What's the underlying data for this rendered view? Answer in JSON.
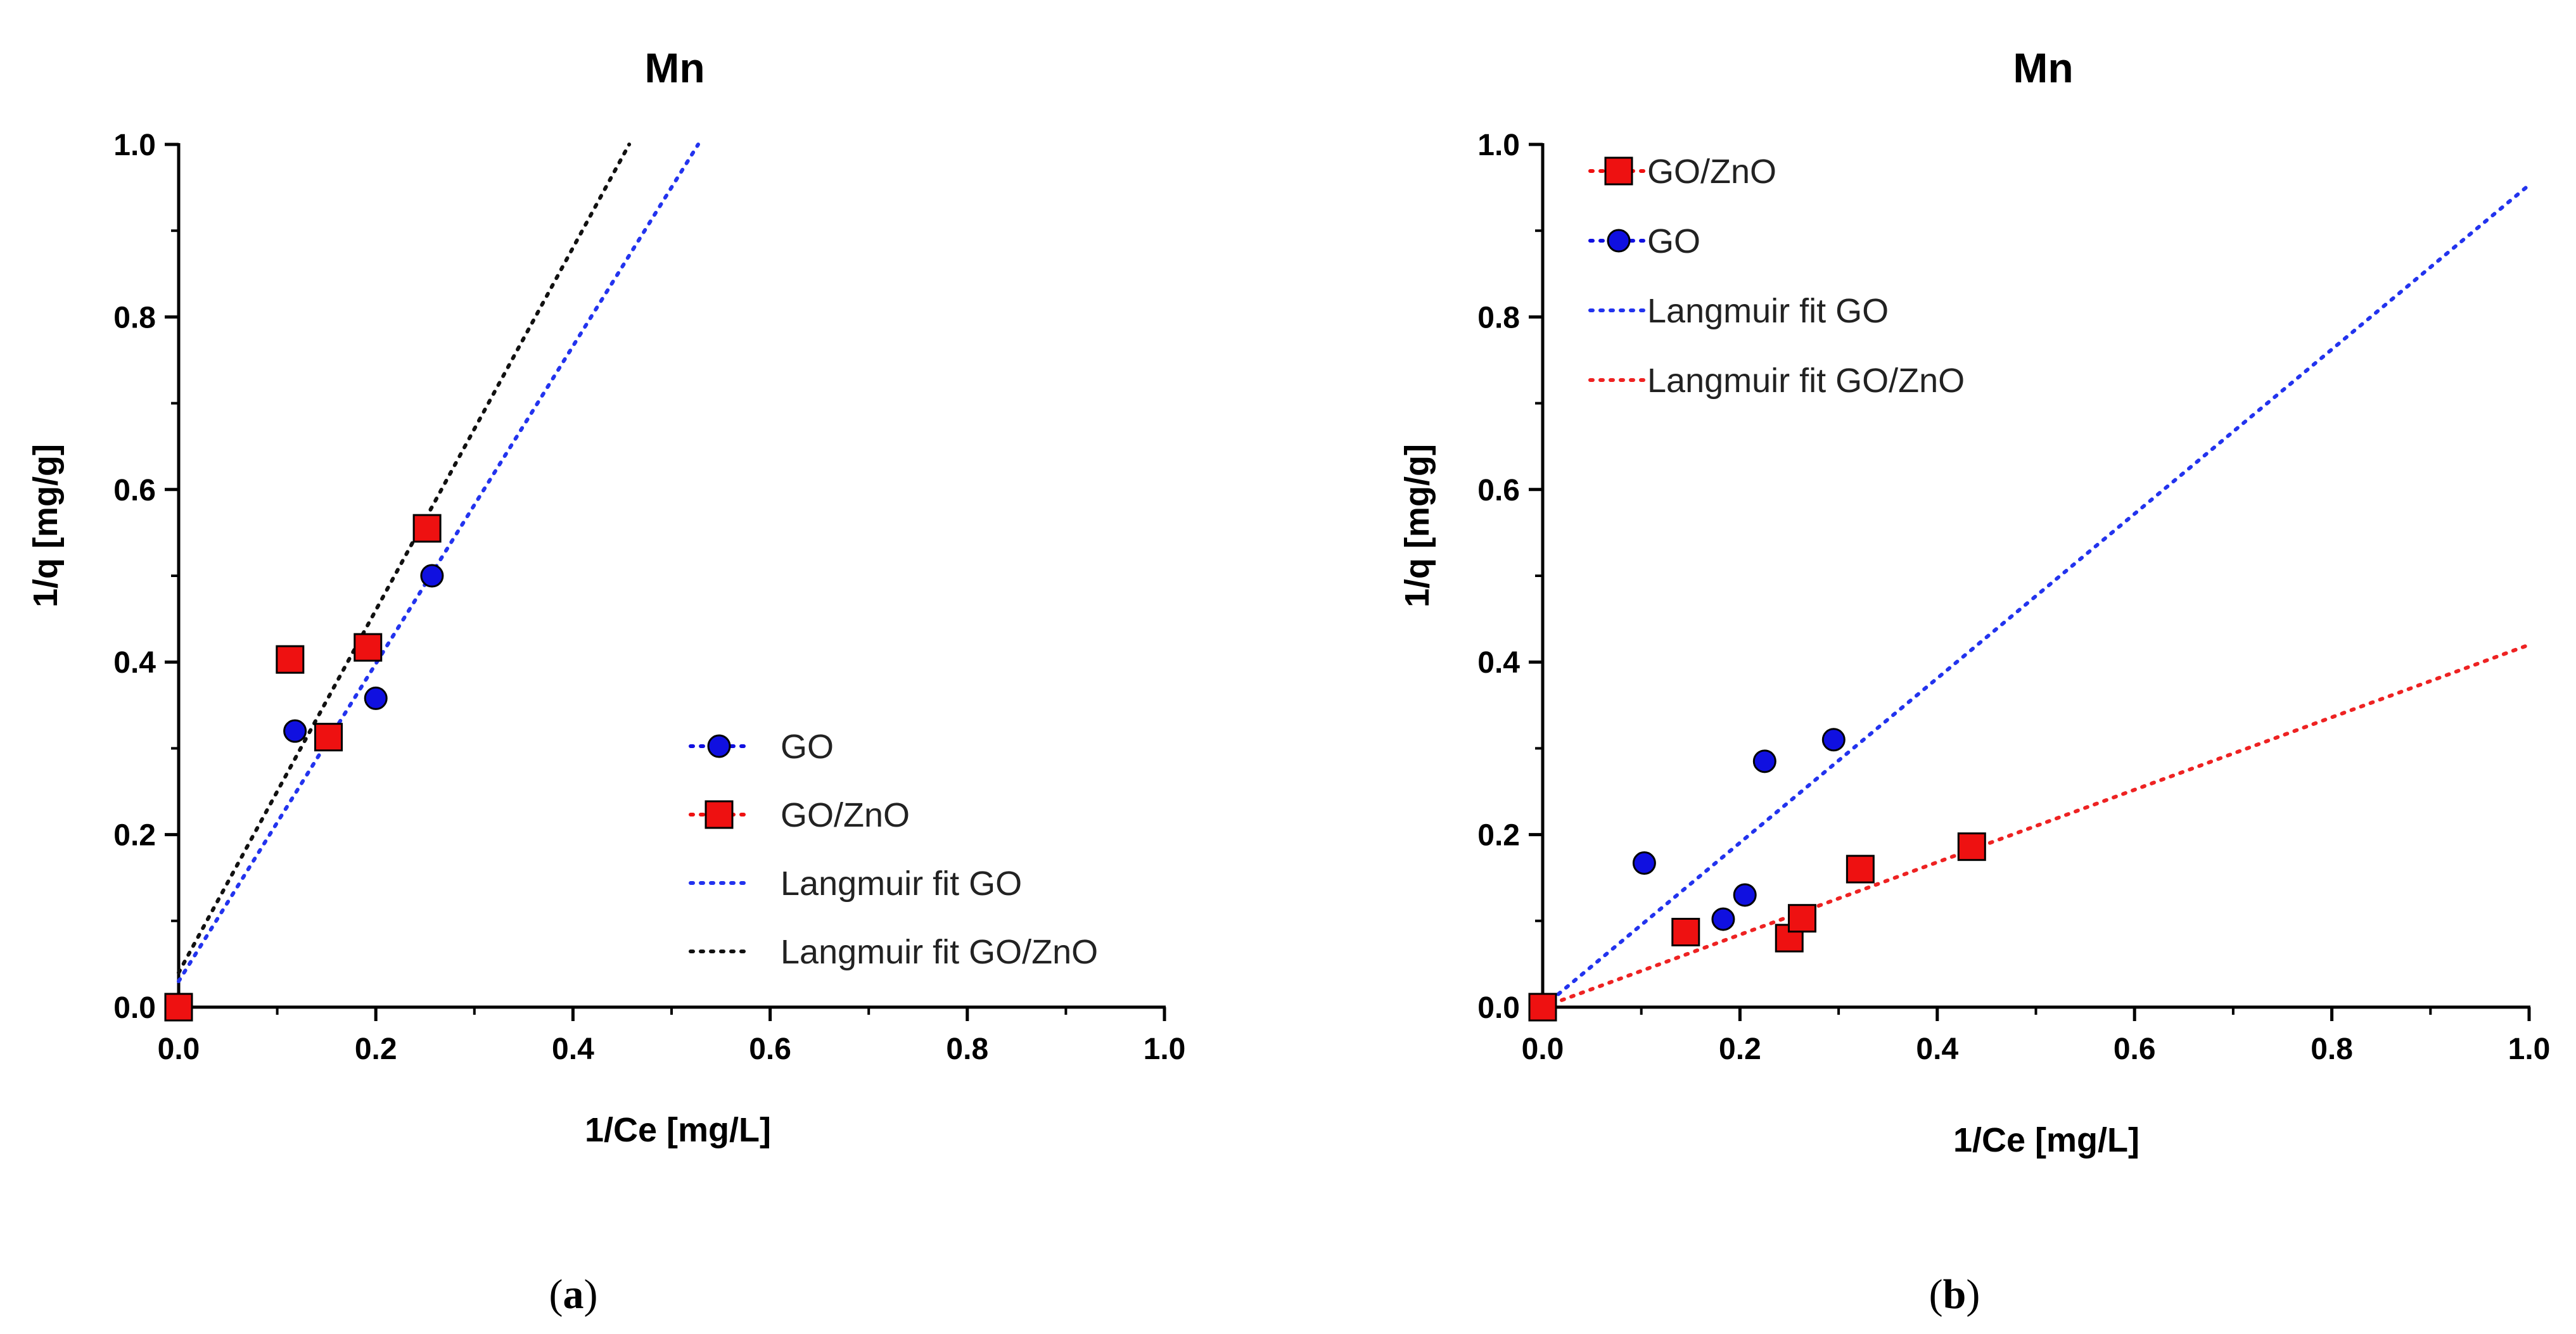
{
  "chart_data": [
    {
      "type": "scatter",
      "panel": "a",
      "title": "Mn",
      "xlabel": "1/Ce [mg/L]",
      "ylabel": "1/q [mg/g]",
      "xlim": [
        0,
        1.0
      ],
      "ylim": [
        0,
        1.0
      ],
      "xticks": [
        "0.0",
        "0.2",
        "0.4",
        "0.6",
        "0.8",
        "1.0"
      ],
      "yticks": [
        "0.0",
        "0.2",
        "0.4",
        "0.6",
        "0.8",
        "1.0"
      ],
      "legend_position": "lower-right",
      "series": [
        {
          "name": "GO",
          "kind": "points",
          "marker": "circle",
          "color": "#1010e0",
          "x": [
            0,
            0.118,
            0.15,
            0.2,
            0.257
          ],
          "y": [
            0,
            0.32,
            0.313,
            0.358,
            0.5
          ]
        },
        {
          "name": "GO/ZnO",
          "kind": "points",
          "marker": "square",
          "color": "#ee1111",
          "x": [
            0,
            0.113,
            0.152,
            0.192,
            0.252
          ],
          "y": [
            0,
            0.403,
            0.313,
            0.417,
            0.555
          ]
        },
        {
          "name": "Langmuir fit GO",
          "kind": "line",
          "color": "#2233ee",
          "x": [
            0,
            0.527
          ],
          "y": [
            0.03,
            1.0
          ]
        },
        {
          "name": "Langmuir fit GO/ZnO",
          "kind": "line",
          "color": "#111111",
          "x": [
            0,
            0.457
          ],
          "y": [
            0.04,
            1.0
          ]
        }
      ],
      "legend_order": [
        "GO",
        "GO/ZnO",
        "Langmuir fit GO",
        "Langmuir fit GO/ZnO"
      ]
    },
    {
      "type": "scatter",
      "panel": "b",
      "title": "Mn",
      "xlabel": "1/Ce [mg/L]",
      "ylabel": "1/q [mg/g]",
      "xlim": [
        0,
        1.0
      ],
      "ylim": [
        0,
        1.0
      ],
      "xticks": [
        "0.0",
        "0.2",
        "0.4",
        "0.6",
        "0.8",
        "1.0"
      ],
      "yticks": [
        "0.0",
        "0.2",
        "0.4",
        "0.6",
        "0.8",
        "1.0"
      ],
      "legend_position": "top-left",
      "series": [
        {
          "name": "GO",
          "kind": "points",
          "marker": "circle",
          "color": "#1010e0",
          "x": [
            0,
            0.103,
            0.183,
            0.205,
            0.225,
            0.295
          ],
          "y": [
            0,
            0.167,
            0.102,
            0.13,
            0.285,
            0.31
          ]
        },
        {
          "name": "GO/ZnO",
          "kind": "points",
          "marker": "square",
          "color": "#ee1111",
          "x": [
            0,
            0.145,
            0.25,
            0.263,
            0.322,
            0.435
          ],
          "y": [
            0,
            0.087,
            0.08,
            0.103,
            0.16,
            0.186
          ]
        },
        {
          "name": "Langmuir fit GO",
          "kind": "line",
          "color": "#2233ee",
          "x": [
            0,
            1.0
          ],
          "y": [
            0,
            0.953
          ]
        },
        {
          "name": "Langmuir fit GO/ZnO",
          "kind": "line",
          "color": "#ee2222",
          "x": [
            0,
            1.0
          ],
          "y": [
            0,
            0.42
          ]
        }
      ],
      "legend_order": [
        "GO/ZnO",
        "GO",
        "Langmuir fit GO",
        "Langmuir fit GO/ZnO"
      ]
    }
  ],
  "captions": [
    {
      "open": "(",
      "letter": "a",
      "close": ")"
    },
    {
      "open": "(",
      "letter": "b",
      "close": ")"
    }
  ]
}
